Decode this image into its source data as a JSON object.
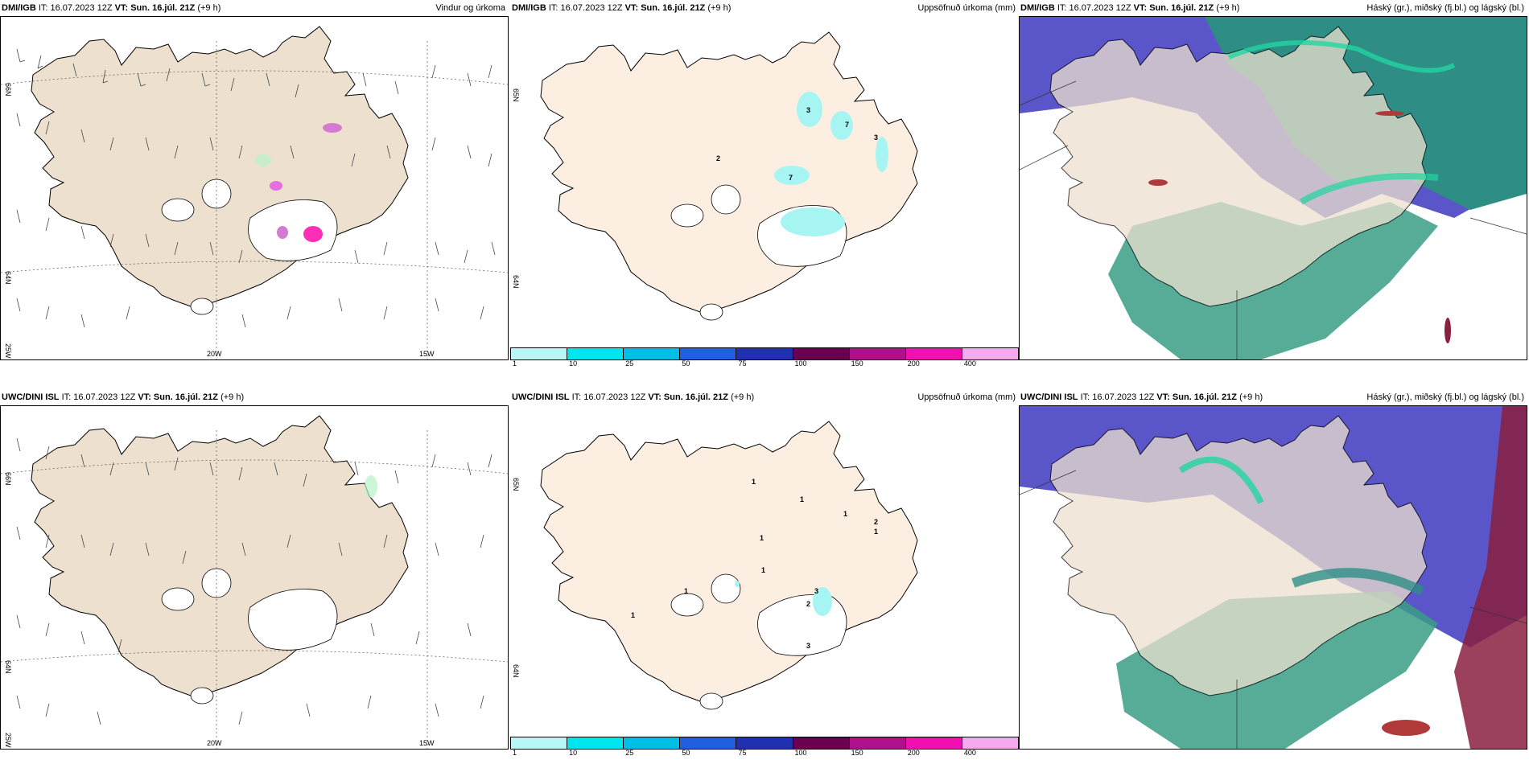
{
  "panels": [
    {
      "model": "DMI/IGB",
      "it": "IT: 16.07.2023 12Z",
      "vt_label": "VT:",
      "vt": "Sun. 16.júl. 21Z",
      "lead": "(+9 h)",
      "title": "Vindur og úrkoma",
      "type": "wind"
    },
    {
      "model": "DMI/IGB",
      "it": "IT: 16.07.2023 12Z",
      "vt_label": "VT:",
      "vt": "Sun. 16.júl. 21Z",
      "lead": "(+9 h)",
      "title": "Uppsöfnuð úrkoma (mm)",
      "type": "precip"
    },
    {
      "model": "DMI/IGB",
      "it": "IT: 16.07.2023 12Z",
      "vt_label": "VT:",
      "vt": "Sun. 16.júl. 21Z",
      "lead": "(+9 h)",
      "title": "Háský (gr.), miðský (fj.bl.) og lágský (bl.)",
      "type": "cloud"
    },
    {
      "model": "UWC/DINI ISL",
      "it": "IT: 16.07.2023 12Z",
      "vt_label": "VT:",
      "vt": "Sun. 16.júl. 21Z",
      "lead": "(+9 h)",
      "title": "",
      "type": "wind"
    },
    {
      "model": "UWC/DINI ISL",
      "it": "IT: 16.07.2023 12Z",
      "vt_label": "VT:",
      "vt": "Sun. 16.júl. 21Z",
      "lead": "(+9 h)",
      "title": "Uppsöfnuð úrkoma (mm)",
      "type": "precip"
    },
    {
      "model": "UWC/DINI ISL",
      "it": "IT: 16.07.2023 12Z",
      "vt_label": "VT:",
      "vt": "Sun. 16.júl. 21Z",
      "lead": "(+9 h)",
      "title": "Háský (gr.), miðský (fj.bl.) og lágský (bl.)",
      "type": "cloud"
    }
  ],
  "axis_labels": {
    "lat1": "66N",
    "lat2": "64N",
    "lat3": "25W",
    "lon1": "20W",
    "lon2": "15W",
    "lat_alt": "65N",
    "lat_alt2": "64N"
  },
  "colorbar": {
    "labels": [
      "1",
      "10",
      "25",
      "50",
      "75",
      "100",
      "150",
      "200",
      "400"
    ],
    "colors": [
      "#b9f6f6",
      "#00e6f0",
      "#00bfe6",
      "#2060e0",
      "#2030b0",
      "#6a0050",
      "#b0108a",
      "#f010b0",
      "#f5aaf0"
    ]
  },
  "precip_labels_top": [
    "3",
    "7",
    "3",
    "2",
    "7"
  ],
  "precip_labels_bottom": [
    "1",
    "1",
    "1",
    "2",
    "1",
    "1",
    "1",
    "3",
    "2",
    "3",
    "1",
    "1"
  ],
  "colors": {
    "land": "#ede0cf",
    "precip_land": "#fcefe2",
    "light_precip": "#a7f5f3",
    "cloud_high": "#5a55c8",
    "cloud_mid": "#2e8e86",
    "cloud_low": "#21d6a0"
  }
}
